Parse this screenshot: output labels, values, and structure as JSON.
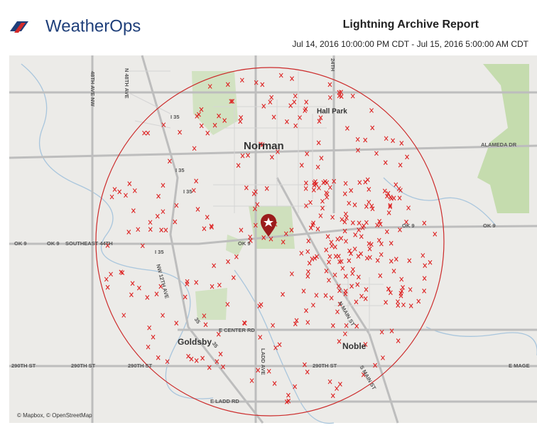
{
  "header": {
    "logo": "WeatherOps",
    "title": "Lightning Archive Report",
    "date_range": "Jul 14, 2016 10:00:00 PM CDT - Jul 15, 2016 5:00:00 AM CDT"
  },
  "map": {
    "places": [
      "Norman",
      "Hall Park",
      "Goldsby",
      "Noble"
    ],
    "roads": [
      "48TH AVE NW",
      "N 48TH AVE",
      "24TH",
      "I 35",
      "I 35",
      "I 35",
      "I 35",
      "ALAMEDA DR",
      "OK 9",
      "OK 9",
      "OK 9",
      "OK 9",
      "OK 9",
      "SOUTHEAST 44TH",
      "NW 12TH AVE",
      "E CENTER RD",
      "LADD AVE",
      "E LADD RD",
      "290TH ST",
      "290TH ST",
      "290TH ST",
      "290TH ST",
      "E MAGE",
      "S MAIN ST",
      "N MAIN ST",
      "35",
      "35"
    ],
    "attribution": "© Mapbox, © OpenStreetMap"
  }
}
